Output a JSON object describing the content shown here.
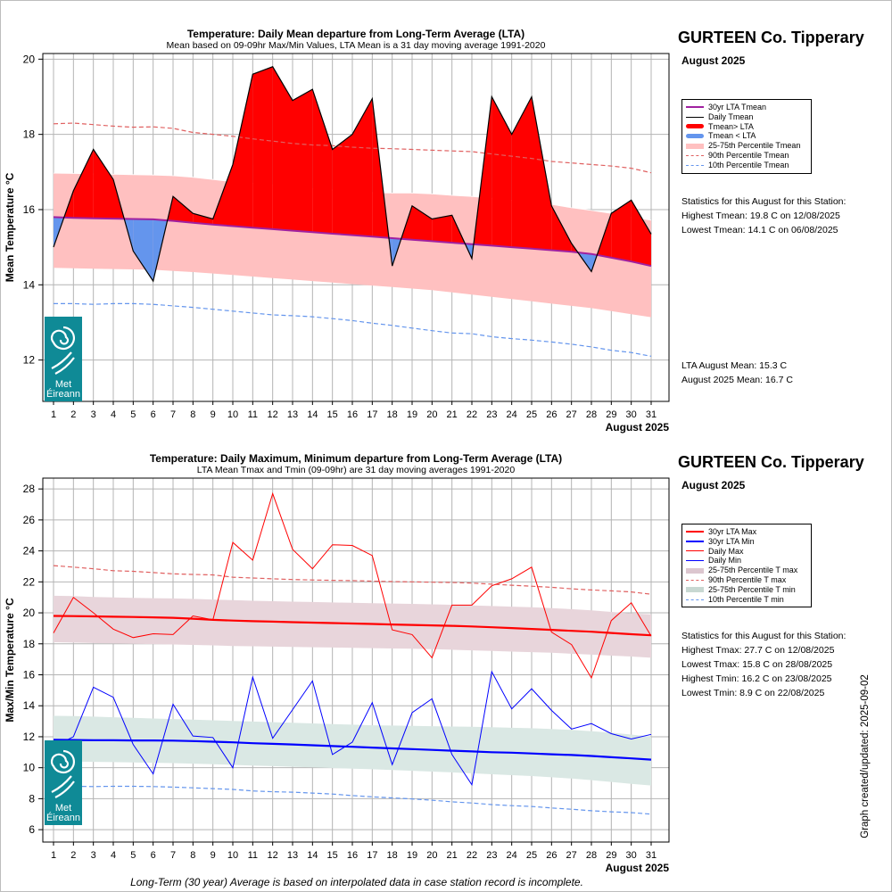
{
  "station": "GURTEEN Co. Tipperary",
  "month_label": "August 2025",
  "footnote": "Long-Term (30 year) Average is based on interpolated data in case station record is incomplete.",
  "created": "Graph created/updated:  2025-09-02",
  "logo": {
    "line1": "Met",
    "line2": "Éireann"
  },
  "colors": {
    "red": "#ff0000",
    "blue": "#6495ed",
    "purple": "#a020a0",
    "pink_band": "#ffc0c0",
    "max_band": "#e8d5db",
    "min_band": "#dae8e4",
    "logo": "#0f8a96"
  },
  "top_legend": [
    {
      "label": "30yr LTA Tmean",
      "sym": "line",
      "color": "#a020a0",
      "w": 2
    },
    {
      "label": "Daily Tmean",
      "sym": "line",
      "color": "#000000",
      "w": 1
    },
    {
      "label": "Tmean> LTA",
      "sym": "thick",
      "color": "#ff0000"
    },
    {
      "label": "Tmean < LTA",
      "sym": "thick",
      "color": "#6495ed"
    },
    {
      "label": "25-75th Percentile Tmean",
      "sym": "band",
      "color": "#ffc0c0"
    },
    {
      "label": "90th Percentile Tmean",
      "sym": "dash",
      "color": "#e06060"
    },
    {
      "label": "10th Percentile Tmean",
      "sym": "dash",
      "color": "#6495ed"
    }
  ],
  "bottom_legend": [
    {
      "label": "30yr LTA Max",
      "sym": "line",
      "color": "#ff0000",
      "w": 2
    },
    {
      "label": "30yr LTA Min",
      "sym": "line",
      "color": "#0000ff",
      "w": 2
    },
    {
      "label": "Daily Max",
      "sym": "line",
      "color": "#ff0000",
      "w": 1
    },
    {
      "label": "Daily Min",
      "sym": "line",
      "color": "#0000ff",
      "w": 1
    },
    {
      "label": "25-75th Percentile T max",
      "sym": "band",
      "color": "#dcc6cf"
    },
    {
      "label": "90th Percentile T max",
      "sym": "dash",
      "color": "#e06060"
    },
    {
      "label": "25-75th Percentile T min",
      "sym": "band",
      "color": "#c8d8d2"
    },
    {
      "label": "10th Percentile T min",
      "sym": "dash",
      "color": "#6495ed"
    }
  ],
  "top_stats": {
    "header": "Statistics for this August for this Station:",
    "lines": [
      "Highest Tmean: 19.8 C on 12/08/2025",
      "Lowest Tmean: 14.1 C on 06/08/2025"
    ],
    "lta_mean": "LTA August Mean: 15.3 C",
    "month_mean": "August 2025 Mean: 16.7 C"
  },
  "bottom_stats": {
    "header": "Statistics for this August for this Station:",
    "lines": [
      "Highest Tmax: 27.7 C on 12/08/2025",
      "Lowest Tmax: 15.8 C on 28/08/2025",
      "Highest Tmin: 16.2 C on 23/08/2025",
      "Lowest Tmin: 8.9 C on 22/08/2025"
    ]
  },
  "chart_data": [
    {
      "type": "area",
      "title": "Temperature: Daily Mean departure from Long-Term Average (LTA)",
      "subtitle": "Mean based on 09-09hr Max/Min Values, LTA Mean is a 31 day moving average 1991-2020",
      "ylabel": "Mean Temperature °C",
      "xlabel": "August 2025",
      "ylim": [
        10.9,
        20.15
      ],
      "yticks": [
        12,
        14,
        16,
        18,
        20
      ],
      "x": [
        1,
        2,
        3,
        4,
        5,
        6,
        7,
        8,
        9,
        10,
        11,
        12,
        13,
        14,
        15,
        16,
        17,
        18,
        19,
        20,
        21,
        22,
        23,
        24,
        25,
        26,
        27,
        28,
        29,
        30,
        31
      ],
      "series": [
        {
          "name": "Daily Tmean",
          "values": [
            15.0,
            16.5,
            17.6,
            16.8,
            14.9,
            14.1,
            16.35,
            15.9,
            15.75,
            17.2,
            19.6,
            19.8,
            18.9,
            19.2,
            17.6,
            18.0,
            18.95,
            14.5,
            16.1,
            15.75,
            15.85,
            14.7,
            19.0,
            18.0,
            19.0,
            16.1,
            15.1,
            14.35,
            15.9,
            16.25,
            15.35
          ]
        },
        {
          "name": "30yr LTA Tmean",
          "values": [
            15.8,
            15.78,
            15.77,
            15.76,
            15.75,
            15.74,
            15.7,
            15.65,
            15.6,
            15.56,
            15.52,
            15.48,
            15.44,
            15.4,
            15.36,
            15.32,
            15.28,
            15.24,
            15.2,
            15.16,
            15.12,
            15.08,
            15.04,
            15.0,
            14.96,
            14.92,
            14.88,
            14.82,
            14.72,
            14.62,
            14.5
          ]
        },
        {
          "name": "25-75th Percentile Tmean (25th)",
          "values": [
            14.45,
            14.44,
            14.43,
            14.42,
            14.41,
            14.4,
            14.37,
            14.34,
            14.3,
            14.26,
            14.22,
            14.18,
            14.14,
            14.1,
            14.06,
            14.02,
            13.98,
            13.94,
            13.9,
            13.86,
            13.8,
            13.74,
            13.68,
            13.62,
            13.56,
            13.5,
            13.44,
            13.38,
            13.3,
            13.22,
            13.14
          ]
        },
        {
          "name": "25-75th Percentile Tmean (75th)",
          "values": [
            16.97,
            16.96,
            16.95,
            16.94,
            16.93,
            16.92,
            16.9,
            16.86,
            16.8,
            16.74,
            16.7,
            16.66,
            16.6,
            16.55,
            16.52,
            16.48,
            16.45,
            16.44,
            16.44,
            16.42,
            16.38,
            16.35,
            16.3,
            16.25,
            16.2,
            16.14,
            16.05,
            15.98,
            15.9,
            15.8,
            15.72
          ]
        },
        {
          "name": "90th Percentile Tmean",
          "values": [
            18.28,
            18.3,
            18.26,
            18.22,
            18.19,
            18.2,
            18.16,
            18.05,
            18.0,
            17.95,
            17.88,
            17.82,
            17.76,
            17.72,
            17.7,
            17.66,
            17.63,
            17.62,
            17.6,
            17.58,
            17.56,
            17.54,
            17.48,
            17.42,
            17.36,
            17.28,
            17.24,
            17.2,
            17.16,
            17.1,
            16.98
          ]
        },
        {
          "name": "10th Percentile Tmean",
          "values": [
            13.5,
            13.5,
            13.48,
            13.5,
            13.5,
            13.48,
            13.44,
            13.4,
            13.35,
            13.3,
            13.25,
            13.2,
            13.18,
            13.15,
            13.1,
            13.05,
            12.98,
            12.92,
            12.85,
            12.78,
            12.72,
            12.7,
            12.62,
            12.57,
            12.53,
            12.48,
            12.42,
            12.35,
            12.26,
            12.2,
            12.1
          ]
        }
      ]
    },
    {
      "type": "line",
      "title": "Temperature: Daily Maximum, Minimum departure from Long-Term Average (LTA)",
      "subtitle": "LTA Mean Tmax and Tmin (09-09hr) are 31 day moving averages 1991-2020",
      "ylabel": "Max/Min Temperature °C",
      "xlabel": "August 2025",
      "ylim": [
        5.2,
        28.7
      ],
      "yticks": [
        6,
        8,
        10,
        12,
        14,
        16,
        18,
        20,
        22,
        24,
        26,
        28
      ],
      "x": [
        1,
        2,
        3,
        4,
        5,
        6,
        7,
        8,
        9,
        10,
        11,
        12,
        13,
        14,
        15,
        16,
        17,
        18,
        19,
        20,
        21,
        22,
        23,
        24,
        25,
        26,
        27,
        28,
        29,
        30,
        31
      ],
      "series": [
        {
          "name": "Daily Max",
          "values": [
            18.7,
            21.0,
            20.0,
            18.95,
            18.4,
            18.65,
            18.6,
            19.8,
            19.55,
            24.55,
            23.4,
            27.7,
            24.1,
            22.85,
            24.4,
            24.35,
            23.7,
            18.9,
            18.6,
            17.1,
            20.5,
            20.5,
            21.75,
            22.2,
            22.95,
            18.75,
            17.95,
            15.8,
            19.5,
            20.65,
            18.5
          ]
        },
        {
          "name": "Daily Min",
          "values": [
            11.35,
            12.0,
            15.2,
            14.55,
            11.5,
            9.6,
            14.1,
            12.05,
            11.95,
            10.0,
            15.85,
            11.9,
            13.75,
            15.6,
            10.85,
            11.65,
            14.2,
            10.2,
            13.55,
            14.45,
            10.85,
            8.9,
            16.2,
            13.8,
            15.1,
            13.7,
            12.5,
            12.85,
            12.2,
            11.85,
            12.15
          ]
        },
        {
          "name": "30yr LTA Max",
          "values": [
            19.8,
            19.79,
            19.77,
            19.75,
            19.73,
            19.71,
            19.68,
            19.62,
            19.55,
            19.5,
            19.46,
            19.43,
            19.4,
            19.37,
            19.34,
            19.31,
            19.28,
            19.25,
            19.22,
            19.19,
            19.16,
            19.12,
            19.07,
            19.02,
            18.96,
            18.9,
            18.84,
            18.78,
            18.7,
            18.62,
            18.55
          ]
        },
        {
          "name": "30yr LTA Min",
          "values": [
            11.8,
            11.79,
            11.78,
            11.77,
            11.76,
            11.76,
            11.75,
            11.72,
            11.68,
            11.64,
            11.58,
            11.54,
            11.5,
            11.45,
            11.4,
            11.35,
            11.3,
            11.25,
            11.2,
            11.15,
            11.1,
            11.05,
            11.0,
            10.97,
            10.92,
            10.87,
            10.82,
            10.76,
            10.68,
            10.6,
            10.52
          ]
        },
        {
          "name": "25-75th Percentile T max (25th)",
          "values": [
            18.1,
            18.08,
            18.05,
            18.02,
            18.0,
            17.98,
            17.96,
            17.93,
            17.9,
            17.86,
            17.84,
            17.82,
            17.8,
            17.78,
            17.76,
            17.74,
            17.72,
            17.7,
            17.68,
            17.66,
            17.62,
            17.58,
            17.54,
            17.5,
            17.46,
            17.42,
            17.36,
            17.3,
            17.24,
            17.18,
            17.1
          ]
        },
        {
          "name": "25-75th Percentile T max (75th)",
          "values": [
            21.1,
            21.08,
            21.03,
            21.0,
            20.97,
            20.95,
            20.93,
            20.9,
            20.86,
            20.82,
            20.78,
            20.75,
            20.72,
            20.7,
            20.67,
            20.65,
            20.62,
            20.6,
            20.58,
            20.55,
            20.52,
            20.48,
            20.44,
            20.4,
            20.36,
            20.3,
            20.24,
            20.16,
            20.06,
            19.96,
            19.9
          ]
        },
        {
          "name": "90th Percentile T max",
          "values": [
            23.05,
            22.95,
            22.85,
            22.72,
            22.68,
            22.6,
            22.52,
            22.48,
            22.45,
            22.3,
            22.25,
            22.2,
            22.15,
            22.12,
            22.1,
            22.08,
            22.05,
            22.02,
            22.0,
            21.98,
            21.96,
            21.92,
            21.85,
            21.78,
            21.72,
            21.65,
            21.55,
            21.48,
            21.42,
            21.35,
            21.2
          ]
        },
        {
          "name": "25-75th Percentile T min (25th)",
          "values": [
            10.4,
            10.4,
            10.38,
            10.36,
            10.34,
            10.32,
            10.3,
            10.26,
            10.22,
            10.18,
            10.14,
            10.1,
            10.06,
            10.02,
            9.98,
            9.94,
            9.9,
            9.85,
            9.8,
            9.75,
            9.7,
            9.64,
            9.58,
            9.52,
            9.46,
            9.38,
            9.3,
            9.2,
            9.08,
            8.96,
            8.85
          ]
        },
        {
          "name": "25-75th Percentile T min (75th)",
          "values": [
            13.35,
            13.33,
            13.3,
            13.26,
            13.22,
            13.18,
            13.14,
            13.1,
            13.06,
            13.02,
            12.98,
            12.94,
            12.9,
            12.86,
            12.82,
            12.78,
            12.74,
            12.72,
            12.7,
            12.68,
            12.66,
            12.64,
            12.62,
            12.58,
            12.55,
            12.5,
            12.44,
            12.36,
            12.26,
            12.14,
            12.0
          ]
        },
        {
          "name": "10th Percentile T min",
          "values": [
            8.8,
            8.8,
            8.78,
            8.8,
            8.8,
            8.78,
            8.75,
            8.7,
            8.65,
            8.6,
            8.5,
            8.45,
            8.42,
            8.36,
            8.3,
            8.2,
            8.12,
            8.05,
            7.98,
            7.9,
            7.8,
            7.72,
            7.62,
            7.55,
            7.5,
            7.4,
            7.32,
            7.22,
            7.15,
            7.1,
            7.0
          ]
        }
      ]
    }
  ]
}
